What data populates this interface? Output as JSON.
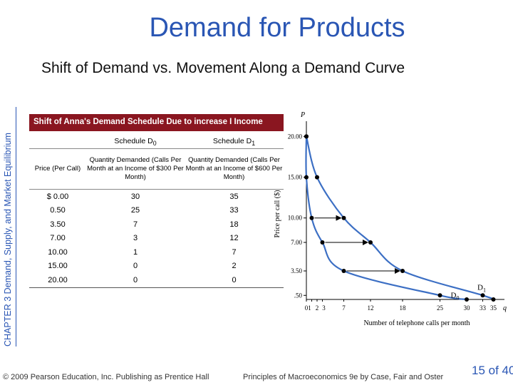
{
  "slide": {
    "title": "Demand for Products",
    "subtitle": "Shift of Demand vs. Movement Along a Demand Curve",
    "chapter_label": "CHAPTER 3  Demand, Supply, and Market Equilibrium",
    "footer_copyright": "© 2009 Pearson Education, Inc. Publishing as Prentice Hall",
    "footer_book": "Principles of Macroeconomics 9e by Case, Fair and Oster",
    "page_number": "15 of 40"
  },
  "table": {
    "title": "Shift of Anna's Demand Schedule Due to increase I Income",
    "schedule_d0_label": "Schedule D",
    "schedule_d0_sub": "0",
    "schedule_d1_label": "Schedule D",
    "schedule_d1_sub": "1",
    "price_header": "Price (Per Call)",
    "d0_header": "Quantity Demanded (Calls Per Month at an Income of $300 Per Month)",
    "d1_header": "Quantity Demanded (Calls Per Month at an Income of $600 Per Month)",
    "rows": [
      {
        "price": "$ 0.00",
        "d0": "30",
        "d1": "35"
      },
      {
        "price": "0.50",
        "d0": "25",
        "d1": "33"
      },
      {
        "price": "3.50",
        "d0": "7",
        "d1": "18"
      },
      {
        "price": "7.00",
        "d0": "3",
        "d1": "12"
      },
      {
        "price": "10.00",
        "d0": "1",
        "d1": "7"
      },
      {
        "price": "15.00",
        "d0": "0",
        "d1": "2"
      },
      {
        "price": "20.00",
        "d0": "0",
        "d1": "0"
      }
    ]
  },
  "chart_data": {
    "type": "line",
    "xlabel": "Number of telephone calls per month",
    "ylabel": "Price per call ($)",
    "y_axis_letter": "P",
    "x_axis_letter": "q",
    "x_ticks": [
      "0",
      "1",
      "2",
      "3",
      "7",
      "12",
      "18",
      "25",
      "30",
      "33",
      "35"
    ],
    "y_ticks": [
      "20.00",
      "15.00",
      "10.00",
      "7.00",
      "3.50",
      ".50"
    ],
    "xlim": [
      0,
      36
    ],
    "ylim": [
      0,
      21
    ],
    "series": [
      {
        "name": "D0",
        "color": "#3c6fc4",
        "points": [
          [
            0,
            20
          ],
          [
            0,
            15
          ],
          [
            1,
            10
          ],
          [
            3,
            7
          ],
          [
            7,
            3.5
          ],
          [
            25,
            0.5
          ],
          [
            30,
            0
          ]
        ]
      },
      {
        "name": "D1",
        "color": "#3c6fc4",
        "points": [
          [
            0,
            20
          ],
          [
            2,
            15
          ],
          [
            7,
            10
          ],
          [
            12,
            7
          ],
          [
            18,
            3.5
          ],
          [
            33,
            0.5
          ],
          [
            35,
            0
          ]
        ]
      }
    ],
    "shift_arrows": [
      {
        "from": [
          1,
          10
        ],
        "to": [
          7,
          10
        ]
      },
      {
        "from": [
          3,
          7
        ],
        "to": [
          12,
          7
        ]
      },
      {
        "from": [
          7,
          3.5
        ],
        "to": [
          18,
          3.5
        ]
      }
    ]
  }
}
